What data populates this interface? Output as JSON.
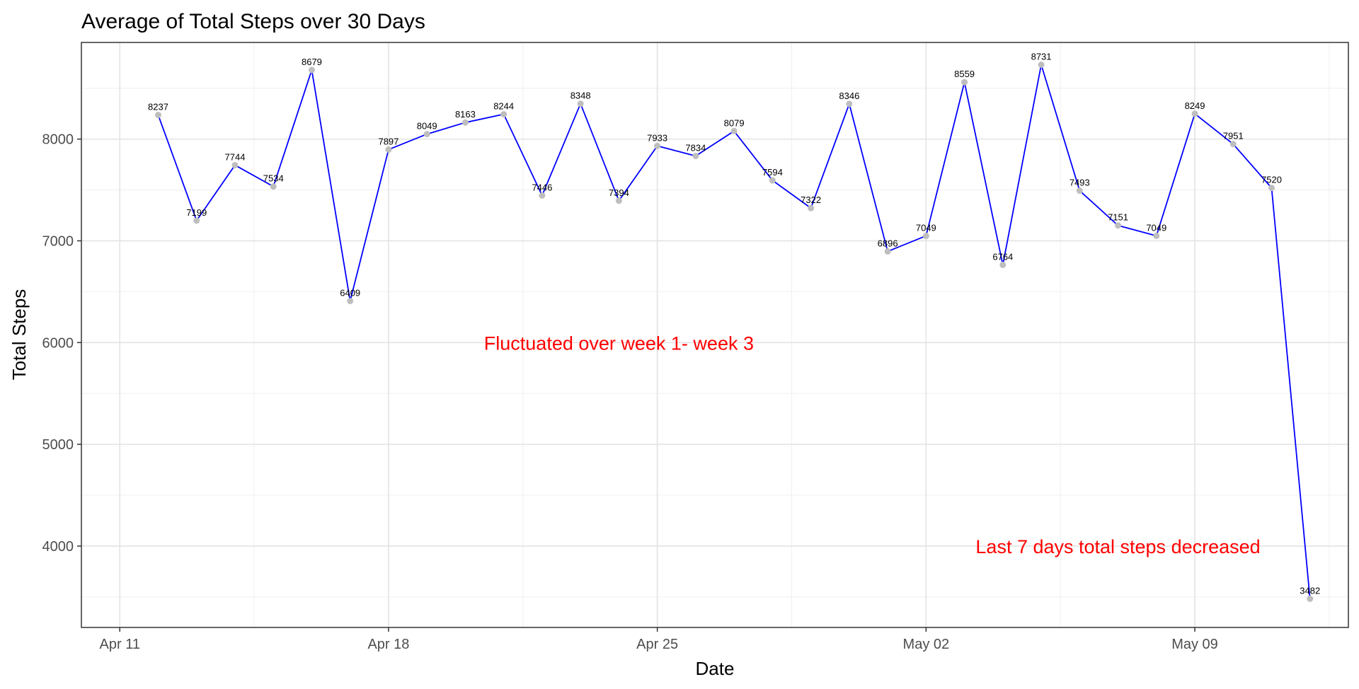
{
  "chart_data": {
    "type": "line",
    "title": "Average of Total Steps over 30 Days",
    "xlabel": "Date",
    "ylabel": "Total Steps",
    "x_start": "2016-04-12",
    "x_range": [
      "2016-04-10",
      "2016-05-13"
    ],
    "ylim": [
      3200,
      8950
    ],
    "y_ticks": [
      4000,
      5000,
      6000,
      7000,
      8000
    ],
    "x_ticks": [
      {
        "date": "2016-04-11",
        "label": "Apr 11"
      },
      {
        "date": "2016-04-18",
        "label": "Apr 18"
      },
      {
        "date": "2016-04-25",
        "label": "Apr 25"
      },
      {
        "date": "2016-05-02",
        "label": "May 02"
      },
      {
        "date": "2016-05-09",
        "label": "May 09"
      }
    ],
    "grid": true,
    "line_color": "#0000ff",
    "point_color": "#bebebe",
    "series": [
      {
        "x": [
          "2016-04-12",
          "2016-04-13",
          "2016-04-14",
          "2016-04-15",
          "2016-04-16",
          "2016-04-17",
          "2016-04-18",
          "2016-04-19",
          "2016-04-20",
          "2016-04-21",
          "2016-04-22",
          "2016-04-23",
          "2016-04-24",
          "2016-04-25",
          "2016-04-26",
          "2016-04-27",
          "2016-04-28",
          "2016-04-29",
          "2016-04-30",
          "2016-05-01",
          "2016-05-02",
          "2016-05-03",
          "2016-05-04",
          "2016-05-05",
          "2016-05-06",
          "2016-05-07",
          "2016-05-08",
          "2016-05-09",
          "2016-05-10",
          "2016-05-11",
          "2016-05-12"
        ],
        "values": [
          8237,
          7199,
          7744,
          7534,
          8679,
          6409,
          7897,
          8049,
          8163,
          8244,
          7446,
          8348,
          7394,
          7933,
          7834,
          8079,
          7594,
          7322,
          8346,
          6896,
          7049,
          8559,
          6764,
          8731,
          7493,
          7151,
          7049,
          8249,
          7951,
          7520,
          3482
        ]
      }
    ],
    "annotations": [
      {
        "text": "Fluctuated over week 1- week 3",
        "x": "2016-04-24",
        "y": 6000,
        "color": "#ff0000"
      },
      {
        "text": "Last 7 days total steps decreased",
        "x": "2016-05-07",
        "y": 4000,
        "color": "#ff0000"
      }
    ]
  }
}
